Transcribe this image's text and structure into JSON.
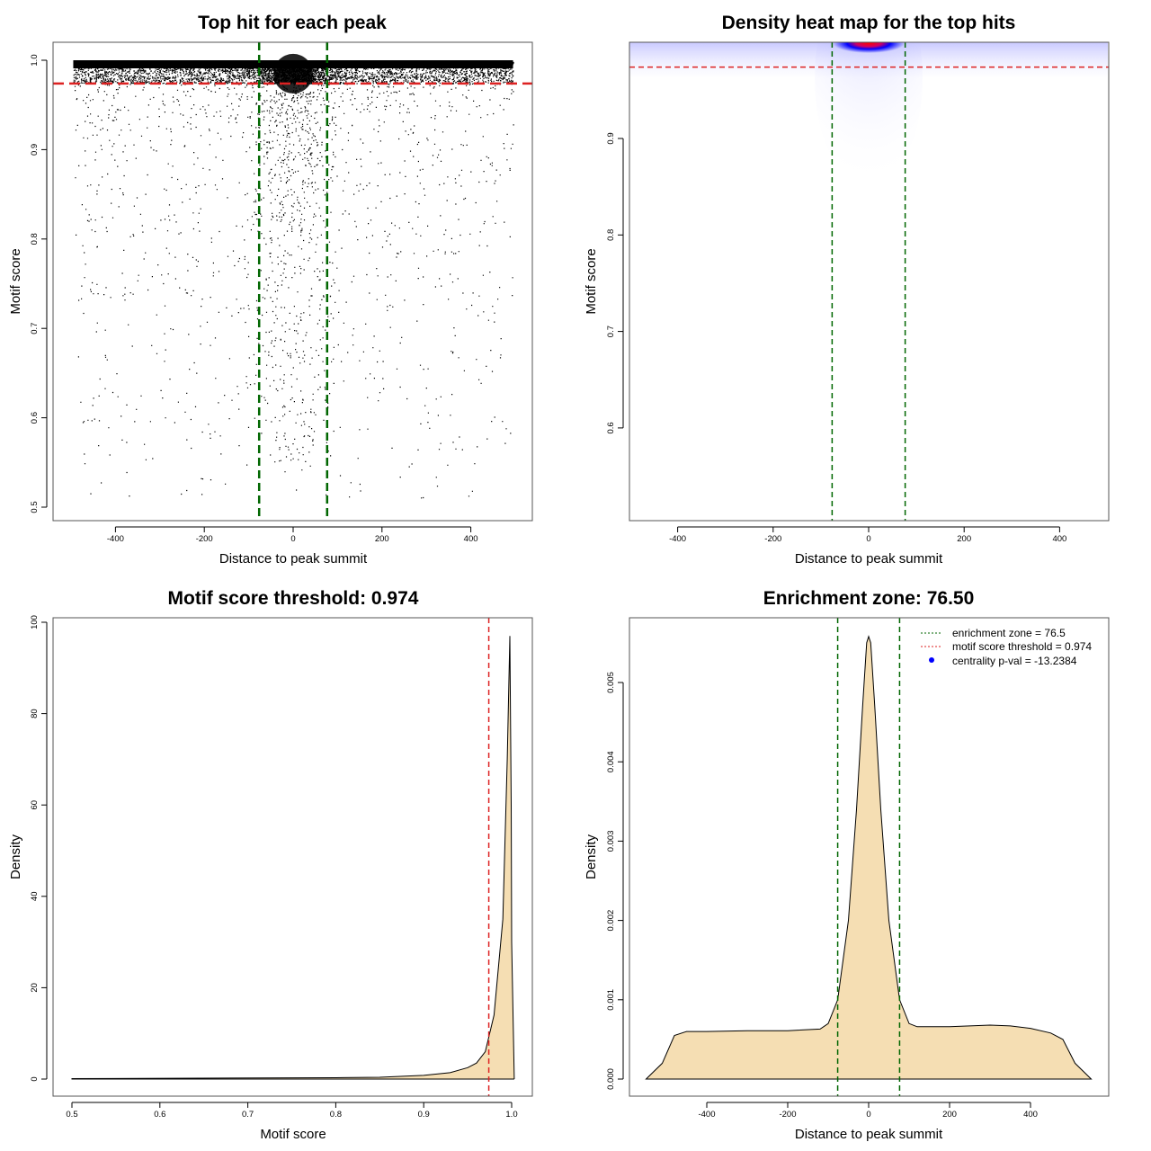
{
  "colors": {
    "threshold": "#dd2222",
    "zone": "#006600",
    "fill": "#f5deb3",
    "points": "#000000",
    "heat_low": "#ffffff",
    "heat_mid": "#0000ff",
    "heat_high": "#ff0000",
    "legend_dot": "#0000ff"
  },
  "chart_data": [
    {
      "type": "scatter",
      "title": "Top hit for each peak",
      "xlabel": "Distance to peak summit",
      "ylabel": "Motif score",
      "xlim": [
        -500,
        500
      ],
      "ylim": [
        0.5,
        1.0
      ],
      "xticks": [
        "-400",
        "-200",
        "0",
        "200",
        "400"
      ],
      "yticks": [
        "0.5",
        "0.6",
        "0.7",
        "0.8",
        "0.9",
        "1.0"
      ],
      "vlines": [
        -76.5,
        76.5
      ],
      "hline": 0.974,
      "grid": false
    },
    {
      "type": "heatmap",
      "title": "Density heat map for the top hits",
      "xlabel": "Distance to peak summit",
      "ylabel": "Motif score",
      "xlim": [
        -500,
        500
      ],
      "ylim": [
        0.503,
        1.0
      ],
      "xticks": [
        "-400",
        "-200",
        "0",
        "200",
        "400"
      ],
      "yticks": [
        "0.6",
        "0.7",
        "0.8",
        "0.9"
      ],
      "vlines": [
        -76.5,
        76.5
      ],
      "hline": 0.974,
      "hotspot": {
        "x": 0,
        "y": 0.998
      }
    },
    {
      "type": "area",
      "title": "Motif score threshold: 0.974",
      "xlabel": "Motif score",
      "ylabel": "Density",
      "xlim": [
        0.5,
        1.0
      ],
      "ylim": [
        0,
        100
      ],
      "xticks": [
        "0.5",
        "0.6",
        "0.7",
        "0.8",
        "0.9",
        "1.0"
      ],
      "yticks": [
        "0",
        "20",
        "40",
        "60",
        "80",
        "100"
      ],
      "vline": 0.974,
      "x": [
        0.5,
        0.8,
        0.85,
        0.9,
        0.93,
        0.95,
        0.96,
        0.97,
        0.98,
        0.99,
        0.995,
        0.998,
        0.9995,
        1.0,
        1.003
      ],
      "y": [
        0.1,
        0.3,
        0.4,
        0.8,
        1.4,
        2.5,
        3.5,
        6,
        14,
        35,
        70,
        97,
        60,
        30,
        0
      ]
    },
    {
      "type": "area",
      "title": "Enrichment zone: 76.50",
      "xlabel": "Distance to peak summit",
      "ylabel": "Density",
      "xlim": [
        -560,
        560
      ],
      "ylim": [
        0,
        0.0058
      ],
      "xticks": [
        "-400",
        "-200",
        "0",
        "200",
        "400"
      ],
      "yticks": [
        "0.000",
        "0.001",
        "0.002",
        "0.003",
        "0.004",
        "0.005"
      ],
      "vlines": [
        -76.5,
        76.5
      ],
      "x": [
        -550,
        -510,
        -480,
        -450,
        -400,
        -300,
        -200,
        -120,
        -100,
        -76.5,
        -50,
        -30,
        -15,
        -5,
        0,
        5,
        15,
        30,
        50,
        76.5,
        100,
        120,
        200,
        300,
        350,
        400,
        450,
        480,
        510,
        550
      ],
      "y": [
        0,
        0.0002,
        0.00055,
        0.0006,
        0.0006,
        0.00061,
        0.00061,
        0.00063,
        0.0007,
        0.001,
        0.002,
        0.0034,
        0.0047,
        0.0055,
        0.00558,
        0.0055,
        0.0047,
        0.0034,
        0.002,
        0.001,
        0.0007,
        0.00066,
        0.00066,
        0.00068,
        0.00067,
        0.00064,
        0.00058,
        0.0005,
        0.0002,
        0
      ],
      "legend": {
        "position": "top-right",
        "items": [
          "enrichment zone = 76.5",
          "motif score threshold = 0.974",
          "centrality p-val = -13.2384"
        ]
      }
    }
  ]
}
